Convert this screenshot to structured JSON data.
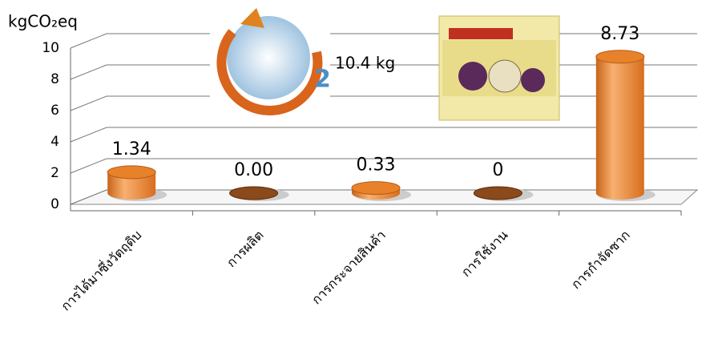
{
  "chart_data": {
    "type": "bar3d",
    "y_axis_title": "kgCO₂eq",
    "annotation": "10.4 kg",
    "categories": [
      "การได้มาซึ่งวัตถุดิบ",
      "การผลิต",
      "การกระจายสินค้า",
      "การใช้งาน",
      "การกำจัดซาก"
    ],
    "values": [
      1.34,
      0.0,
      0.33,
      0,
      8.73
    ],
    "value_labels": [
      "1.34",
      "0.00",
      "0.33",
      "0",
      "8.73"
    ],
    "color": "#e8822a",
    "ylim": [
      0,
      10
    ],
    "yticks": [
      0,
      2,
      4,
      6,
      8,
      10
    ],
    "grid": true
  }
}
